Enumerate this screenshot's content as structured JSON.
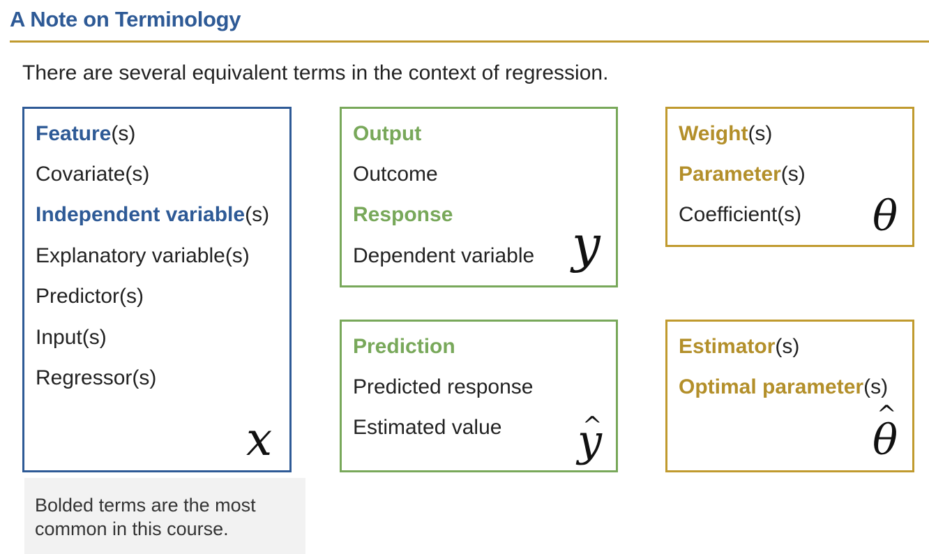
{
  "header": {
    "title": "A Note on Terminology",
    "intro": "There are several equivalent terms in the context of regression."
  },
  "colors": {
    "blue": "#2e5a96",
    "green": "#78a85a",
    "gold": "#c09a2e",
    "note_bg": "#f2f2f2"
  },
  "x_box": {
    "t1_bold": "Feature",
    "t1_rest": "(s)",
    "t2": "Covariate(s)",
    "t3_bold": "Independent variable",
    "t3_rest": "(s)",
    "t4": "Explanatory variable(s)",
    "t5": "Predictor(s)",
    "t6": "Input(s)",
    "t7": "Regressor(s)",
    "symbol": "x"
  },
  "y_box": {
    "t1_bold": "Output",
    "t2": "Outcome",
    "t3_bold": "Response",
    "t4": "Dependent variable",
    "symbol": "y"
  },
  "yhat_box": {
    "t1_bold": "Prediction",
    "t2": "Predicted response",
    "t3": "Estimated value",
    "symbol": "y",
    "hat": "^"
  },
  "theta_box": {
    "t1_bold": "Weight",
    "t1_rest": "(s)",
    "t2_bold": "Parameter",
    "t2_rest": "(s)",
    "t3": "Coefficient(s)",
    "symbol": "θ"
  },
  "thetahat_box": {
    "t1_bold": "Estimator",
    "t1_rest": "(s)",
    "t2_bold": "Optimal parameter",
    "t2_rest": "(s)",
    "symbol": "θ",
    "hat": "^"
  },
  "note": {
    "text": "Bolded terms are the most common in this course."
  }
}
